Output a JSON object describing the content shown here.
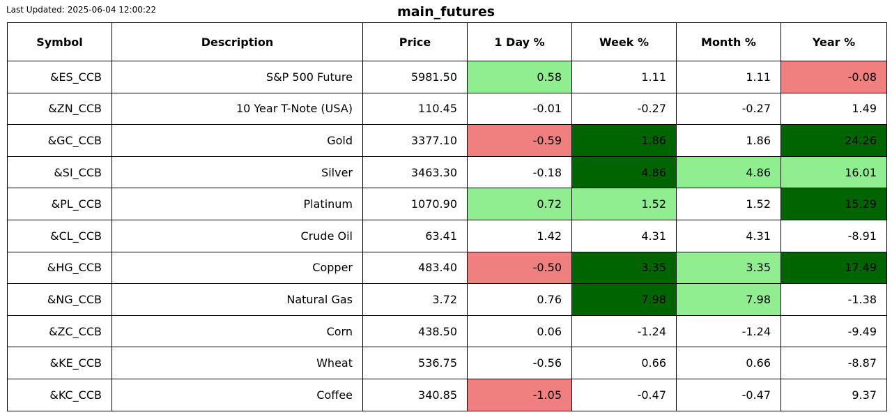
{
  "header": {
    "last_updated": "Last Updated: 2025-06-04 12:00:22",
    "title": "main_futures"
  },
  "colors": {
    "light_green": "#90ee90",
    "dark_green": "#006400",
    "light_red": "#f08080",
    "neutral": "#ffffff"
  },
  "chart_data": {
    "type": "table",
    "title": "main_futures",
    "columns": [
      "Symbol",
      "Description",
      "Price",
      "1 Day %",
      "Week %",
      "Month %",
      "Year %"
    ],
    "rows": [
      {
        "cells": [
          "&ES_CCB",
          "S&P 500 Future",
          "5981.50",
          "0.58",
          "1.11",
          "1.11",
          "-0.08"
        ],
        "shade": [
          null,
          null,
          null,
          "light_green",
          null,
          null,
          "light_red"
        ]
      },
      {
        "cells": [
          "&ZN_CCB",
          "10 Year T-Note (USA)",
          "110.45",
          "-0.01",
          "-0.27",
          "-0.27",
          "1.49"
        ],
        "shade": [
          null,
          null,
          null,
          null,
          null,
          null,
          null
        ]
      },
      {
        "cells": [
          "&GC_CCB",
          "Gold",
          "3377.10",
          "-0.59",
          "1.86",
          "1.86",
          "24.26"
        ],
        "shade": [
          null,
          null,
          null,
          "light_red",
          "dark_green",
          null,
          "dark_green"
        ]
      },
      {
        "cells": [
          "&SI_CCB",
          "Silver",
          "3463.30",
          "-0.18",
          "4.86",
          "4.86",
          "16.01"
        ],
        "shade": [
          null,
          null,
          null,
          null,
          "dark_green",
          "light_green",
          "light_green"
        ]
      },
      {
        "cells": [
          "&PL_CCB",
          "Platinum",
          "1070.90",
          "0.72",
          "1.52",
          "1.52",
          "15.29"
        ],
        "shade": [
          null,
          null,
          null,
          "light_green",
          "light_green",
          null,
          "dark_green"
        ]
      },
      {
        "cells": [
          "&CL_CCB",
          "Crude Oil",
          "63.41",
          "1.42",
          "4.31",
          "4.31",
          "-8.91"
        ],
        "shade": [
          null,
          null,
          null,
          null,
          null,
          null,
          null
        ]
      },
      {
        "cells": [
          "&HG_CCB",
          "Copper",
          "483.40",
          "-0.50",
          "3.35",
          "3.35",
          "17.49"
        ],
        "shade": [
          null,
          null,
          null,
          "light_red",
          "dark_green",
          "light_green",
          "dark_green"
        ]
      },
      {
        "cells": [
          "&NG_CCB",
          "Natural Gas",
          "3.72",
          "0.76",
          "7.98",
          "7.98",
          "-1.38"
        ],
        "shade": [
          null,
          null,
          null,
          null,
          "dark_green",
          "light_green",
          null
        ]
      },
      {
        "cells": [
          "&ZC_CCB",
          "Corn",
          "438.50",
          "0.06",
          "-1.24",
          "-1.24",
          "-9.49"
        ],
        "shade": [
          null,
          null,
          null,
          null,
          null,
          null,
          null
        ]
      },
      {
        "cells": [
          "&KE_CCB",
          "Wheat",
          "536.75",
          "-0.56",
          "0.66",
          "0.66",
          "-8.87"
        ],
        "shade": [
          null,
          null,
          null,
          null,
          null,
          null,
          null
        ]
      },
      {
        "cells": [
          "&KC_CCB",
          "Coffee",
          "340.85",
          "-1.05",
          "-0.47",
          "-0.47",
          "9.37"
        ],
        "shade": [
          null,
          null,
          null,
          "light_red",
          null,
          null,
          null
        ]
      }
    ]
  }
}
